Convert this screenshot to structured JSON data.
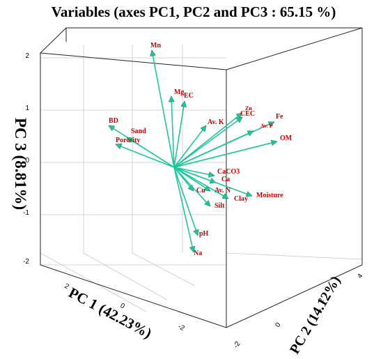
{
  "chart_data": {
    "type": "scatter",
    "title": "Variables (axes PC1, PC2 and PC3 : 65.15 %)",
    "axes": {
      "pc1": {
        "label": "PC 1 (42.23%)",
        "ticks": [
          "2",
          "0",
          "-2"
        ]
      },
      "pc2": {
        "label": "PC 2 (14.12%)",
        "ticks": [
          "-2",
          "0",
          "2",
          "4"
        ]
      },
      "pc3": {
        "label": "PC 3 (8.81%)",
        "ticks": [
          "2",
          "1",
          "0",
          "-1",
          "-2"
        ],
        "range": [
          -2.1,
          2.2
        ]
      }
    },
    "grid": true,
    "arrow_color": "#1ec79a",
    "label_color": "#cc0000",
    "series": [
      {
        "label": "Mn",
        "value": 2.0
      },
      {
        "label": "Mg",
        "value": 1.2
      },
      {
        "label": "EC",
        "value": 1.15
      },
      {
        "label": "Zn",
        "value": 0.85
      },
      {
        "label": "CEC",
        "value": 0.8
      },
      {
        "label": "Fe",
        "value": 0.75
      },
      {
        "label": "Av. P",
        "value": 0.6
      },
      {
        "label": "Av. K",
        "value": 0.7
      },
      {
        "label": "OM",
        "value": 0.4
      },
      {
        "label": "BD",
        "value": 0.7
      },
      {
        "label": "Sand",
        "value": 0.55
      },
      {
        "label": "Porosity",
        "value": 0.35
      },
      {
        "label": "CaCO3",
        "value": -0.2
      },
      {
        "label": "Ca",
        "value": -0.35
      },
      {
        "label": "Cu",
        "value": -0.55
      },
      {
        "label": "Av. N",
        "value": -0.55
      },
      {
        "label": "Clay",
        "value": -0.65
      },
      {
        "label": "Moisture",
        "value": -0.6
      },
      {
        "label": "Silt",
        "value": -0.85
      },
      {
        "label": "pH",
        "value": -1.4
      },
      {
        "label": "Na",
        "value": -1.85
      }
    ]
  }
}
